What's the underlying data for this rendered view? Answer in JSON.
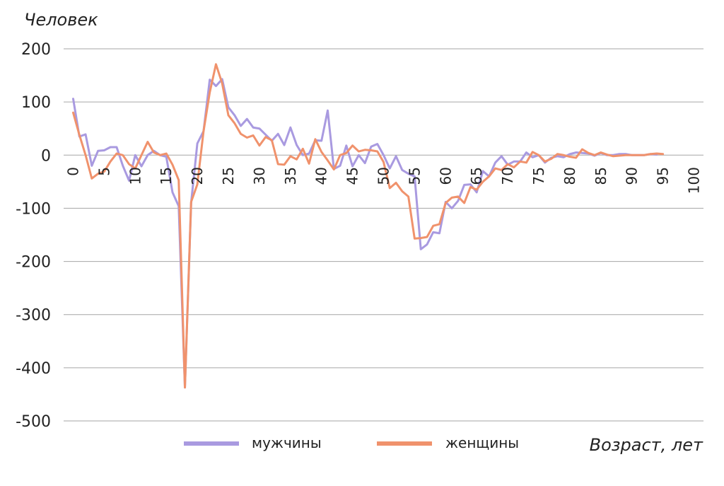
{
  "chart_data": {
    "type": "line",
    "ylabel": "Человек",
    "xlabel": "Возраст, лет",
    "ylim": [
      -500,
      200
    ],
    "yticks": [
      200,
      100,
      0,
      -100,
      -200,
      -300,
      -400,
      -500
    ],
    "xlim": [
      0,
      100
    ],
    "xticks": [
      0,
      5,
      10,
      15,
      20,
      25,
      30,
      35,
      40,
      45,
      50,
      55,
      60,
      65,
      70,
      75,
      80,
      85,
      90,
      95,
      100
    ],
    "grid": true,
    "legend_position": "bottom",
    "series": [
      {
        "name": "мужчины",
        "color": "#a99ae0",
        "points": [
          [
            0,
            106
          ],
          [
            1,
            35
          ],
          [
            2,
            39
          ],
          [
            3,
            -20
          ],
          [
            4,
            8
          ],
          [
            5,
            9
          ],
          [
            6,
            15
          ],
          [
            7,
            15
          ],
          [
            8,
            -20
          ],
          [
            9,
            -48
          ],
          [
            10,
            0
          ],
          [
            11,
            -21
          ],
          [
            12,
            0
          ],
          [
            13,
            8
          ],
          [
            14,
            0
          ],
          [
            15,
            -3
          ],
          [
            16,
            -70
          ],
          [
            17,
            -96
          ],
          [
            18,
            -437
          ],
          [
            19,
            -90
          ],
          [
            20,
            22
          ],
          [
            21,
            45
          ],
          [
            22,
            142
          ],
          [
            23,
            130
          ],
          [
            24,
            143
          ],
          [
            25,
            90
          ],
          [
            26,
            75
          ],
          [
            27,
            55
          ],
          [
            28,
            68
          ],
          [
            29,
            52
          ],
          [
            30,
            50
          ],
          [
            32,
            27
          ],
          [
            33,
            40
          ],
          [
            34,
            19
          ],
          [
            35,
            52
          ],
          [
            36,
            19
          ],
          [
            37,
            0
          ],
          [
            38,
            3
          ],
          [
            39,
            28
          ],
          [
            40,
            27
          ],
          [
            41,
            84
          ],
          [
            42,
            -26
          ],
          [
            43,
            -20
          ],
          [
            44,
            18
          ],
          [
            45,
            -21
          ],
          [
            46,
            0
          ],
          [
            47,
            -15
          ],
          [
            48,
            16
          ],
          [
            49,
            21
          ],
          [
            50,
            0
          ],
          [
            51,
            -25
          ],
          [
            52,
            -2
          ],
          [
            53,
            -28
          ],
          [
            54,
            -35
          ],
          [
            55,
            -40
          ],
          [
            56,
            -177
          ],
          [
            57,
            -168
          ],
          [
            58,
            -145
          ],
          [
            59,
            -147
          ],
          [
            60,
            -88
          ],
          [
            61,
            -100
          ],
          [
            62,
            -86
          ],
          [
            63,
            -56
          ],
          [
            64,
            -55
          ],
          [
            65,
            -70
          ],
          [
            66,
            -30
          ],
          [
            67,
            -40
          ],
          [
            68,
            -14
          ],
          [
            69,
            -2
          ],
          [
            70,
            -18
          ],
          [
            71,
            -12
          ],
          [
            72,
            -12
          ],
          [
            73,
            5
          ],
          [
            74,
            -4
          ],
          [
            75,
            0
          ],
          [
            76,
            -14
          ],
          [
            77,
            -5
          ],
          [
            78,
            -2
          ],
          [
            79,
            -4
          ],
          [
            80,
            2
          ],
          [
            81,
            5
          ],
          [
            82,
            4
          ],
          [
            83,
            3
          ],
          [
            84,
            -1
          ],
          [
            85,
            4
          ],
          [
            86,
            0
          ],
          [
            87,
            0
          ],
          [
            88,
            2
          ],
          [
            89,
            2
          ],
          [
            90,
            0
          ],
          [
            91,
            0
          ],
          [
            92,
            0
          ],
          [
            93,
            2
          ],
          [
            94,
            1
          ]
        ]
      },
      {
        "name": "женщины",
        "color": "#f0926c",
        "points": [
          [
            0,
            80
          ],
          [
            1,
            38
          ],
          [
            2,
            0
          ],
          [
            3,
            -44
          ],
          [
            4,
            -35
          ],
          [
            5,
            -31
          ],
          [
            6,
            -12
          ],
          [
            7,
            3
          ],
          [
            8,
            0
          ],
          [
            9,
            -17
          ],
          [
            10,
            -25
          ],
          [
            11,
            0
          ],
          [
            12,
            25
          ],
          [
            13,
            5
          ],
          [
            14,
            0
          ],
          [
            15,
            3
          ],
          [
            16,
            -18
          ],
          [
            17,
            -47
          ],
          [
            18,
            -437
          ],
          [
            19,
            -88
          ],
          [
            20,
            -55
          ],
          [
            21,
            45
          ],
          [
            22,
            118
          ],
          [
            23,
            171
          ],
          [
            24,
            135
          ],
          [
            25,
            75
          ],
          [
            26,
            60
          ],
          [
            27,
            40
          ],
          [
            28,
            33
          ],
          [
            29,
            37
          ],
          [
            30,
            18
          ],
          [
            31,
            34
          ],
          [
            32,
            28
          ],
          [
            33,
            -17
          ],
          [
            34,
            -18
          ],
          [
            35,
            -2
          ],
          [
            36,
            -8
          ],
          [
            37,
            12
          ],
          [
            38,
            -16
          ],
          [
            39,
            30
          ],
          [
            40,
            6
          ],
          [
            41,
            -10
          ],
          [
            42,
            -27
          ],
          [
            43,
            0
          ],
          [
            44,
            4
          ],
          [
            45,
            18
          ],
          [
            46,
            7
          ],
          [
            47,
            10
          ],
          [
            48,
            9
          ],
          [
            49,
            7
          ],
          [
            50,
            -13
          ],
          [
            51,
            -62
          ],
          [
            52,
            -52
          ],
          [
            53,
            -68
          ],
          [
            54,
            -78
          ],
          [
            55,
            -157
          ],
          [
            56,
            -156
          ],
          [
            57,
            -154
          ],
          [
            58,
            -133
          ],
          [
            59,
            -130
          ],
          [
            60,
            -90
          ],
          [
            61,
            -80
          ],
          [
            62,
            -78
          ],
          [
            63,
            -90
          ],
          [
            64,
            -60
          ],
          [
            65,
            -65
          ],
          [
            66,
            -50
          ],
          [
            67,
            -40
          ],
          [
            68,
            -25
          ],
          [
            69,
            -28
          ],
          [
            70,
            -17
          ],
          [
            71,
            -23
          ],
          [
            72,
            -12
          ],
          [
            73,
            -14
          ],
          [
            74,
            6
          ],
          [
            75,
            0
          ],
          [
            76,
            -12
          ],
          [
            77,
            -7
          ],
          [
            78,
            2
          ],
          [
            79,
            0
          ],
          [
            80,
            -3
          ],
          [
            81,
            -5
          ],
          [
            82,
            11
          ],
          [
            83,
            4
          ],
          [
            84,
            0
          ],
          [
            85,
            5
          ],
          [
            86,
            1
          ],
          [
            87,
            -2
          ],
          [
            88,
            -1
          ],
          [
            89,
            0
          ],
          [
            90,
            0
          ],
          [
            91,
            0
          ],
          [
            92,
            0
          ],
          [
            93,
            2
          ],
          [
            94,
            3
          ],
          [
            95,
            2
          ]
        ]
      }
    ]
  }
}
